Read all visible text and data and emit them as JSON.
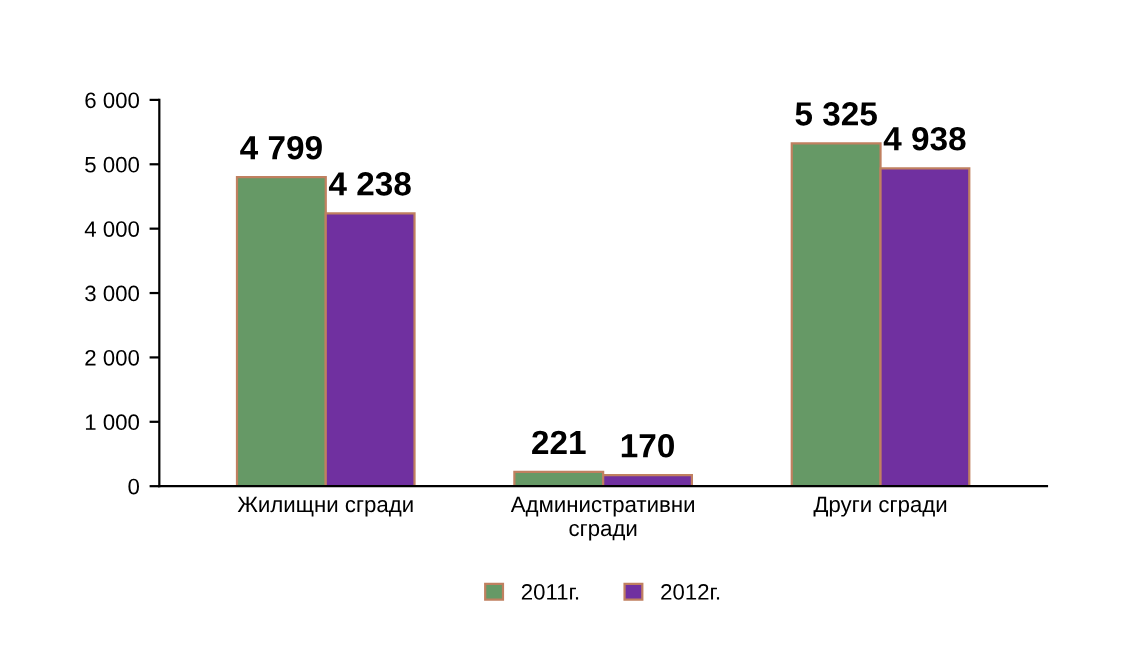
{
  "chart_data": {
    "type": "bar",
    "categories": [
      "Жилищни сгради",
      "Административни\nсгради",
      "Други сгради"
    ],
    "series": [
      {
        "name": "2011г.",
        "color": "#669966",
        "values": [
          4799,
          221,
          5325
        ],
        "value_labels": [
          "4 799",
          "221",
          "5 325"
        ]
      },
      {
        "name": "2012г.",
        "color": "#7030a0",
        "values": [
          4238,
          170,
          4938
        ],
        "value_labels": [
          "4 238",
          "170",
          "4 938"
        ]
      }
    ],
    "ylim": [
      0,
      6000
    ],
    "yticks": [
      0,
      {
        "value": 1000,
        "label": "1 000"
      },
      {
        "value": 2000,
        "label": "2 000"
      },
      {
        "value": 3000,
        "label": "3 000"
      },
      {
        "value": 4000,
        "label": "4 000"
      },
      {
        "value": 5000,
        "label": "5 000"
      },
      {
        "value": 6000,
        "label": "6 000"
      }
    ],
    "grid": false,
    "legend": "bottom"
  }
}
